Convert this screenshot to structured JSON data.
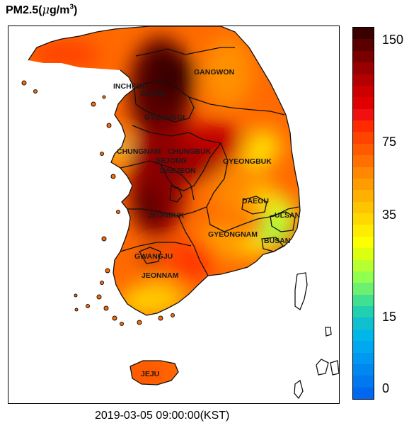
{
  "title": {
    "prefix": "PM2.5(",
    "mu": "μ",
    "unit": "g/m",
    "exponent": "3",
    "suffix": ")"
  },
  "timestamp": "2019-03-05 09:00:00(KST)",
  "colorbar": {
    "ticks": [
      "150",
      "75",
      "35",
      "15",
      "0"
    ],
    "colors_top_to_bottom": [
      "#3a0000",
      "#5a0000",
      "#7a0000",
      "#9a0000",
      "#b40000",
      "#cc0000",
      "#e00000",
      "#f01010",
      "#ff2a00",
      "#ff4400",
      "#ff5a00",
      "#ff7000",
      "#ff8800",
      "#ff9c00",
      "#ffb000",
      "#ffc400",
      "#ffd800",
      "#ffec00",
      "#fbff00",
      "#dcff10",
      "#b8ff30",
      "#90ff50",
      "#6cf070",
      "#40e090",
      "#20d0b0",
      "#10c0d0",
      "#00b8e8",
      "#00a8f0",
      "#0098f0",
      "#0088f0",
      "#0078f0",
      "#0068f0"
    ]
  },
  "regions": {
    "gangwon": "GANGWON",
    "chungnam": "CHUNGNAM",
    "chungbuk": "CHUNGBUK",
    "sejong": "SEJONG",
    "daejeon": "DAEJEON",
    "gyeongbuk": "GYEONGBUK",
    "daegu": "DAEGU",
    "ulsan": "ULSAN",
    "jeonbuk": "JEONBUK",
    "gyeongnam": "GYEONGNAM",
    "busan": "BUSAN",
    "gwangju": "GWANGJU",
    "jeonnam": "JEONNAM",
    "jeju": "JEJU",
    "seoul": "SEOUL",
    "incheon": "INCHEON",
    "gyeonggi": "GYEONGGI"
  }
}
